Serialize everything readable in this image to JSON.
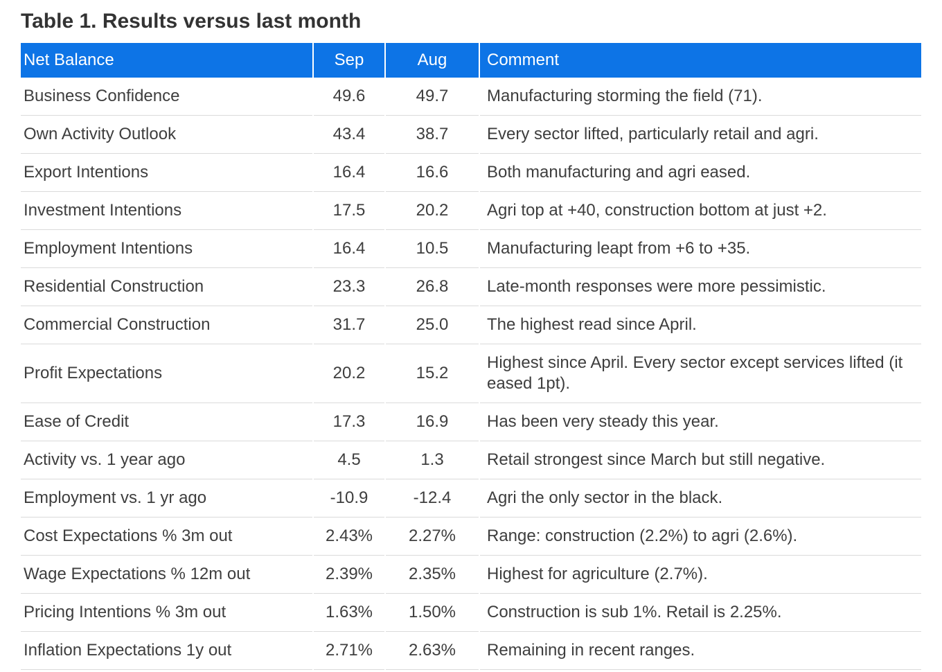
{
  "title": "Table 1. Results versus last month",
  "chart_data": {
    "type": "table",
    "title": "Table 1. Results versus last month",
    "columns": [
      "Net Balance",
      "Sep",
      "Aug",
      "Comment"
    ],
    "rows": [
      [
        "Business Confidence",
        "49.6",
        "49.7",
        "Manufacturing storming the field (71)."
      ],
      [
        "Own Activity Outlook",
        "43.4",
        "38.7",
        "Every sector lifted, particularly retail and agri."
      ],
      [
        "Export Intentions",
        "16.4",
        "16.6",
        "Both manufacturing and agri eased."
      ],
      [
        "Investment Intentions",
        "17.5",
        "20.2",
        "Agri top at +40, construction bottom at just +2."
      ],
      [
        "Employment Intentions",
        "16.4",
        "10.5",
        "Manufacturing leapt from +6 to +35."
      ],
      [
        "Residential Construction",
        "23.3",
        "26.8",
        "Late-month responses were more pessimistic."
      ],
      [
        "Commercial Construction",
        "31.7",
        "25.0",
        "The highest read since April."
      ],
      [
        "Profit Expectations",
        "20.2",
        "15.2",
        "Highest since April. Every sector except services lifted (it eased 1pt)."
      ],
      [
        "Ease of Credit",
        "17.3",
        "16.9",
        "Has been very steady this year."
      ],
      [
        "Activity vs. 1 year ago",
        "4.5",
        "1.3",
        "Retail strongest since March but still negative."
      ],
      [
        "Employment vs. 1 yr ago",
        "-10.9",
        "-12.4",
        "Agri the only sector in the black."
      ],
      [
        "Cost Expectations % 3m out",
        "2.43%",
        "2.27%",
        "Range: construction (2.2%) to agri (2.6%)."
      ],
      [
        "Wage Expectations % 12m out",
        "2.39%",
        "2.35%",
        "Highest for agriculture (2.7%)."
      ],
      [
        "Pricing Intentions % 3m out",
        "1.63%",
        "1.50%",
        "Construction is sub 1%. Retail is 2.25%."
      ],
      [
        "Inflation Expectations 1y out",
        "2.71%",
        "2.63%",
        "Remaining in recent ranges."
      ]
    ]
  },
  "colors": {
    "header_background": "#0d74e6",
    "header_text": "#ffffff",
    "body_text": "#3e3e3e",
    "row_divider": "#dadada",
    "title_text": "#333333"
  }
}
